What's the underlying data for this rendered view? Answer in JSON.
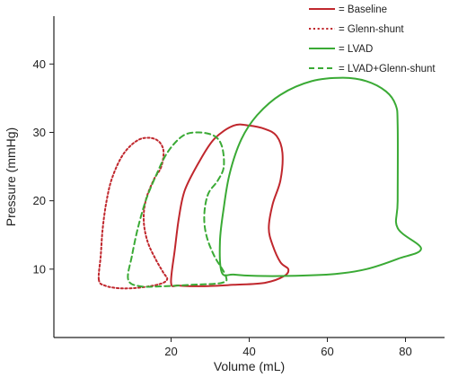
{
  "chart_data": {
    "type": "line",
    "xlabel": "Volume (mL)",
    "ylabel": "Pressure (mmHg)",
    "xlim": [
      -10,
      90
    ],
    "ylim": [
      0,
      47
    ],
    "xticks": [
      20,
      40,
      60,
      80
    ],
    "yticks": [
      10,
      20,
      30,
      40
    ],
    "grid": false,
    "legend_position": "top-right",
    "series": [
      {
        "name": "= Baseline",
        "color": "#c0272d",
        "dash": "solid",
        "closed": true,
        "points": [
          [
            20,
            8
          ],
          [
            21,
            13
          ],
          [
            22,
            17.5
          ],
          [
            23.5,
            21.5
          ],
          [
            27,
            25.5
          ],
          [
            31,
            29
          ],
          [
            36,
            31
          ],
          [
            40,
            31
          ],
          [
            44,
            30.5
          ],
          [
            47,
            29.5
          ],
          [
            48.5,
            27
          ],
          [
            48,
            23
          ],
          [
            46,
            19.5
          ],
          [
            45,
            16
          ],
          [
            46,
            13.5
          ],
          [
            48,
            11
          ],
          [
            50,
            10
          ],
          [
            49,
            9
          ],
          [
            44,
            8
          ],
          [
            36,
            7.7
          ],
          [
            28,
            7.5
          ],
          [
            22,
            7.6
          ]
        ]
      },
      {
        "name": "= Glenn-shunt",
        "color": "#c0272d",
        "dash": "dotted",
        "closed": true,
        "points": [
          [
            1.5,
            8.5
          ],
          [
            2,
            12
          ],
          [
            2.5,
            16
          ],
          [
            3.5,
            20
          ],
          [
            5,
            23.5
          ],
          [
            8,
            27
          ],
          [
            12,
            29
          ],
          [
            16,
            29
          ],
          [
            18,
            27.5
          ],
          [
            17.5,
            25
          ],
          [
            15.5,
            23
          ],
          [
            13.5,
            20
          ],
          [
            13,
            17
          ],
          [
            14,
            14
          ],
          [
            16,
            11.5
          ],
          [
            18,
            9.5
          ],
          [
            19,
            8.5
          ],
          [
            17,
            7.8
          ],
          [
            12,
            7.3
          ],
          [
            7,
            7.2
          ],
          [
            3,
            7.6
          ]
        ]
      },
      {
        "name": "= LVAD",
        "color": "#3aaa35",
        "dash": "solid",
        "closed": true,
        "points": [
          [
            33,
            9.5
          ],
          [
            32.5,
            14
          ],
          [
            33.5,
            19
          ],
          [
            35,
            24
          ],
          [
            38,
            29
          ],
          [
            42,
            32.5
          ],
          [
            48,
            35.5
          ],
          [
            56,
            37.5
          ],
          [
            64,
            38
          ],
          [
            70,
            37.5
          ],
          [
            75,
            36
          ],
          [
            77.5,
            34
          ],
          [
            78,
            31
          ],
          [
            78,
            20
          ],
          [
            78,
            16
          ],
          [
            84,
            13
          ],
          [
            78,
            11.5
          ],
          [
            70,
            10
          ],
          [
            62,
            9.3
          ],
          [
            50,
            9
          ],
          [
            42,
            9
          ],
          [
            36,
            9.2
          ]
        ]
      },
      {
        "name": "= LVAD+Glenn-shunt",
        "color": "#3aaa35",
        "dash": "dashed",
        "closed": true,
        "points": [
          [
            9,
            8.5
          ],
          [
            10,
            12
          ],
          [
            11.5,
            16
          ],
          [
            13.5,
            20
          ],
          [
            16,
            23.5
          ],
          [
            19,
            27
          ],
          [
            23,
            29.5
          ],
          [
            27,
            30
          ],
          [
            31,
            29.5
          ],
          [
            33,
            28
          ],
          [
            33.5,
            25
          ],
          [
            32,
            23
          ],
          [
            29.5,
            21
          ],
          [
            28.5,
            18
          ],
          [
            29,
            15
          ],
          [
            31,
            12
          ],
          [
            34,
            9
          ],
          [
            33,
            8
          ],
          [
            25,
            7.7
          ],
          [
            18,
            7.5
          ],
          [
            12,
            7.5
          ]
        ]
      }
    ]
  }
}
